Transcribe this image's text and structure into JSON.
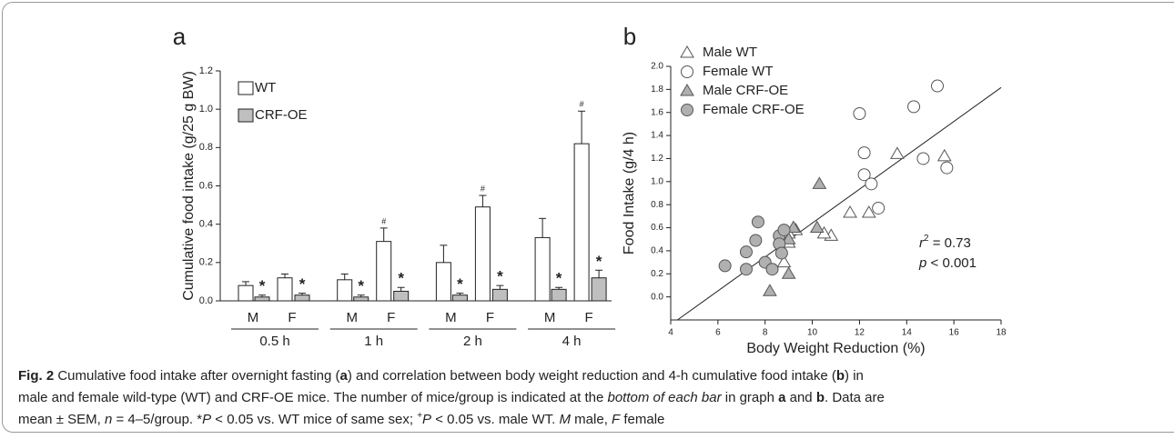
{
  "chart_data": [
    {
      "type": "bar",
      "title": "a",
      "y_label": "Cumulative food intake (g/25 g BW)",
      "categories": [
        "M",
        "F",
        "M",
        "F",
        "M",
        "F",
        "M",
        "F"
      ],
      "groups": [
        "0.5 h",
        "1 h",
        "2 h",
        "4 h"
      ],
      "series": [
        {
          "name": "WT",
          "color": "#ffffff",
          "values": [
            0.08,
            0.12,
            0.11,
            0.31,
            0.2,
            0.49,
            0.33,
            0.82
          ],
          "errors": [
            0.02,
            0.02,
            0.03,
            0.07,
            0.09,
            0.06,
            0.1,
            0.17
          ],
          "annotations": [
            null,
            null,
            null,
            "#",
            null,
            "#",
            null,
            "#"
          ]
        },
        {
          "name": "CRF-OE",
          "color": "#bfbfbf",
          "values": [
            0.02,
            0.03,
            0.02,
            0.05,
            0.03,
            0.06,
            0.06,
            0.12
          ],
          "errors": [
            0.01,
            0.01,
            0.01,
            0.02,
            0.01,
            0.02,
            0.01,
            0.04
          ],
          "annotations": [
            "*",
            "*",
            "*",
            "*",
            "*",
            "*",
            "*",
            "*"
          ]
        }
      ],
      "ylim": [
        0,
        1.2
      ],
      "yticks": [
        {
          "value": 0,
          "label": "0.0"
        },
        {
          "value": 0.2,
          "label": "0.2"
        },
        {
          "value": 0.4,
          "label": "0.4"
        },
        {
          "value": 0.6,
          "label": "0.6"
        },
        {
          "value": 0.8,
          "label": "0.8"
        },
        {
          "value": 1.0,
          "label": "1.0"
        },
        {
          "value": 1.2,
          "label": "1.2"
        }
      ]
    },
    {
      "type": "scatter",
      "title": "b",
      "x_label": "Body Weight Reduction (%)",
      "y_label": "Food Intake (g/4 h)",
      "series": [
        {
          "name": "Male WT",
          "marker": "triangle",
          "color": "#ffffff",
          "x": [
            13.6,
            15.6,
            12.4,
            11.6,
            10.8,
            10.5,
            9.3,
            9.0,
            9.0,
            8.8
          ],
          "y": [
            1.24,
            1.22,
            0.73,
            0.73,
            0.53,
            0.55,
            0.58,
            0.55,
            0.47,
            0.3
          ]
        },
        {
          "name": "Female WT",
          "marker": "circle",
          "color": "#ffffff",
          "x": [
            15.3,
            14.3,
            12.0,
            12.2,
            14.7,
            15.7,
            12.2,
            12.5,
            12.8
          ],
          "y": [
            1.83,
            1.65,
            1.59,
            1.25,
            1.2,
            1.12,
            1.06,
            0.98,
            0.77
          ]
        },
        {
          "name": "Male CRF-OE",
          "marker": "triangle",
          "color": "#b0b0b0",
          "x": [
            10.3,
            10.2,
            9.2,
            9.0,
            9.0,
            8.2
          ],
          "y": [
            0.98,
            0.6,
            0.6,
            0.5,
            0.2,
            0.05
          ]
        },
        {
          "name": "Female CRF-OE",
          "marker": "circle",
          "color": "#b0b0b0",
          "x": [
            6.3,
            7.2,
            7.2,
            7.6,
            7.7,
            8.0,
            8.3,
            8.6,
            8.6,
            8.7,
            8.8
          ],
          "y": [
            0.27,
            0.39,
            0.24,
            0.49,
            0.65,
            0.3,
            0.24,
            0.53,
            0.46,
            0.38,
            0.58
          ]
        }
      ],
      "regression": {
        "slope": 0.147,
        "intercept": -0.83
      },
      "stats": [
        {
          "symbol": "r",
          "sup": "2",
          "text": " = 0.73"
        },
        {
          "symbol": "p",
          "text": " < 0.001"
        }
      ],
      "xlim": [
        4,
        18
      ],
      "xticks": [
        4,
        6,
        8,
        10,
        12,
        14,
        16,
        18
      ],
      "ylim": [
        -0.2,
        2.0
      ],
      "yticks": [
        {
          "value": 0,
          "label": "0.0"
        },
        {
          "value": 0.2,
          "label": "0.2"
        },
        {
          "value": 0.4,
          "label": "0.4"
        },
        {
          "value": 0.6,
          "label": "0.6"
        },
        {
          "value": 0.8,
          "label": "0.8"
        },
        {
          "value": 1.0,
          "label": "1.0"
        },
        {
          "value": 1.2,
          "label": "1.2"
        },
        {
          "value": 1.4,
          "label": "1.4"
        },
        {
          "value": 1.6,
          "label": "1.6"
        },
        {
          "value": 1.8,
          "label": "1.8"
        },
        {
          "value": 2.0,
          "label": "2.0"
        }
      ]
    }
  ],
  "caption": [
    [
      {
        "text": "Fig. 2",
        "style": "b"
      },
      {
        "text": " Cumulative food intake after overnight fasting ("
      },
      {
        "text": "a",
        "style": "b"
      },
      {
        "text": ") and correlation between body weight reduction and 4-h cumulative food intake ("
      },
      {
        "text": "b",
        "style": "b"
      },
      {
        "text": ") in"
      }
    ],
    [
      {
        "text": "male and female wild-type (WT) and CRF-OE mice. The number of mice/group is indicated at the "
      },
      {
        "text": "bottom of each bar",
        "style": "i"
      },
      {
        "text": " in graph "
      },
      {
        "text": "a",
        "style": "b"
      },
      {
        "text": " and "
      },
      {
        "text": "b",
        "style": "b"
      },
      {
        "text": ". Data are"
      }
    ],
    [
      {
        "text": "mean ± SEM, "
      },
      {
        "text": "n",
        "style": "i"
      },
      {
        "text": " = 4–5/group. *"
      },
      {
        "text": "P",
        "style": "i"
      },
      {
        "text": " < 0.05 vs. WT mice of same sex; "
      },
      {
        "text": "+",
        "style": "sup"
      },
      {
        "text": "P",
        "style": "i"
      },
      {
        "text": " < 0.05 vs. male WT. "
      },
      {
        "text": "M",
        "style": "i"
      },
      {
        "text": " male, "
      },
      {
        "text": "F",
        "style": "i"
      },
      {
        "text": " female"
      }
    ]
  ]
}
